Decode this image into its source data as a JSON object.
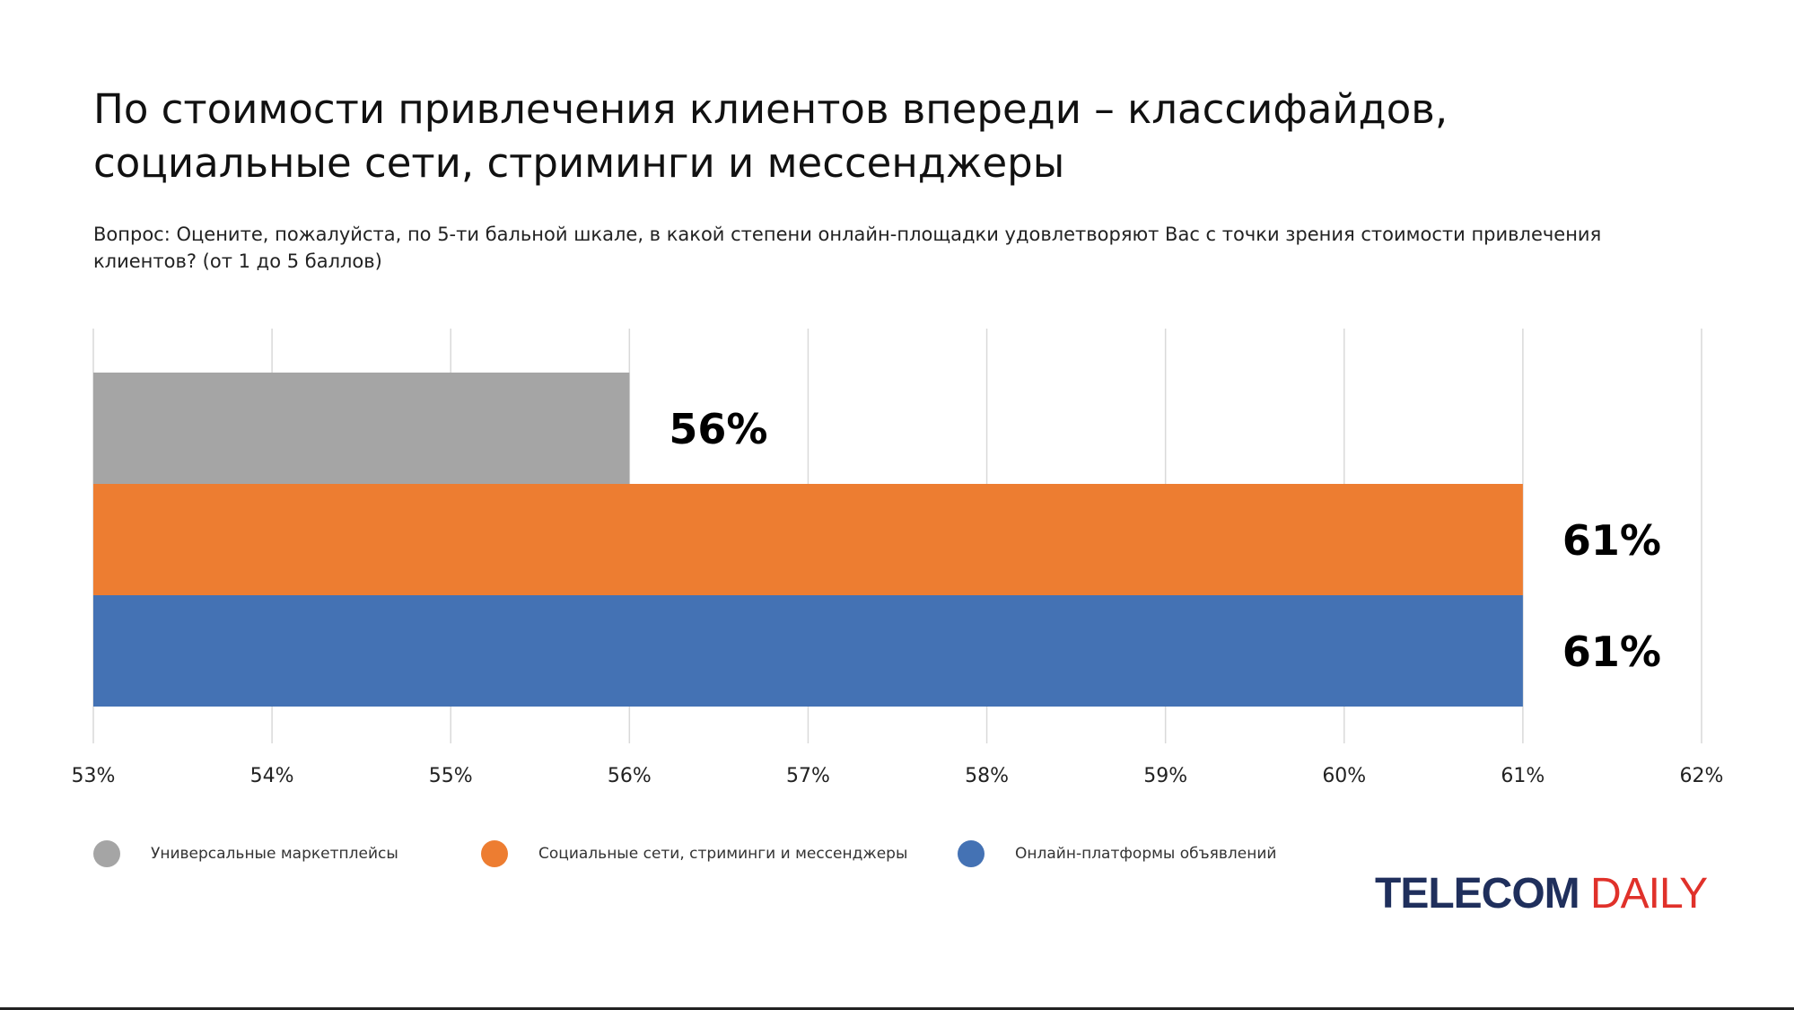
{
  "title": "По стоимости привлечения клиентов впереди – классифайдов, социальные сети, стриминги и мессенджеры",
  "question": "Вопрос: Оцените, пожалуйста, по 5-ти бальной шкале, в какой степени онлайн-площадки удовлетворяют Вас с точки зрения стоимости привлечения клиентов? (от 1 до 5 баллов)",
  "logo": {
    "part1": "TELECOM",
    "part2": "DAILY"
  },
  "colors": {
    "grid": "#d9d9d9",
    "axis_text": "#222222",
    "label_text": "#000000"
  },
  "chart_data": {
    "type": "bar",
    "orientation": "horizontal",
    "xlim": [
      53,
      62
    ],
    "ticks": [
      53,
      54,
      55,
      56,
      57,
      58,
      59,
      60,
      61,
      62
    ],
    "tick_labels": [
      "53%",
      "54%",
      "55%",
      "56%",
      "57%",
      "58%",
      "59%",
      "60%",
      "61%",
      "62%"
    ],
    "grid": true,
    "legend_position": "bottom",
    "series": [
      {
        "name": "Универсальные маркетплейсы",
        "value": 56,
        "label": "56%",
        "color": "#a5a5a5"
      },
      {
        "name": "Социальные сети, стриминги и мессенджеры",
        "value": 61,
        "label": "61%",
        "color": "#ed7d31"
      },
      {
        "name": "Онлайн-платформы объявлений",
        "value": 61,
        "label": "61%",
        "color": "#4472b4"
      }
    ]
  }
}
